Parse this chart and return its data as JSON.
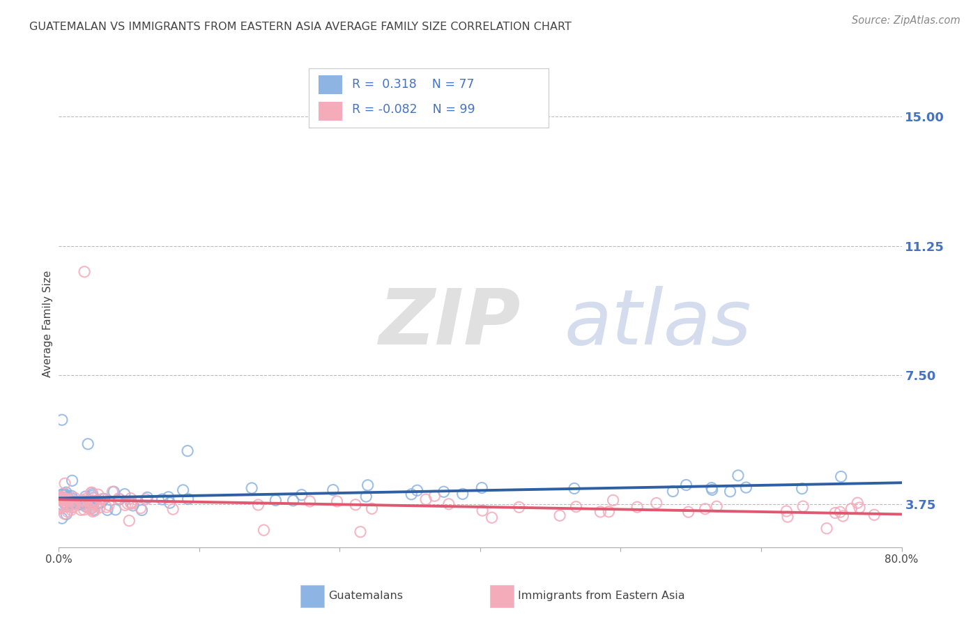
{
  "title": "GUATEMALAN VS IMMIGRANTS FROM EASTERN ASIA AVERAGE FAMILY SIZE CORRELATION CHART",
  "source": "Source: ZipAtlas.com",
  "ylabel": "Average Family Size",
  "yticks": [
    3.75,
    7.5,
    11.25,
    15.0
  ],
  "xlim": [
    0.0,
    80.0
  ],
  "ylim": [
    2.5,
    15.5
  ],
  "blue_color": "#8EB4E3",
  "pink_color": "#F4ABBA",
  "blue_line_color": "#2E5FA3",
  "pink_line_color": "#E05870",
  "R_blue": 0.318,
  "N_blue": 77,
  "R_pink": -0.082,
  "N_pink": 99,
  "watermark_zip": "ZIP",
  "watermark_atlas": "atlas",
  "legend_label_blue": "Guatemalans",
  "legend_label_pink": "Immigrants from Eastern Asia",
  "grid_color": "#BBBBBB",
  "title_color": "#444444",
  "axis_label_color": "#4472C4",
  "xtick_positions": [
    0,
    13.33,
    26.67,
    40,
    53.33,
    66.67,
    80
  ]
}
